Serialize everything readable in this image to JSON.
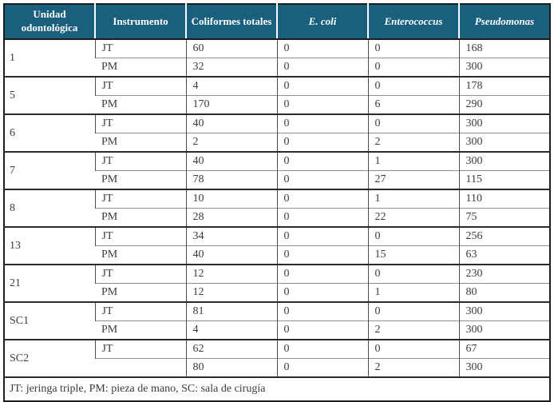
{
  "colors": {
    "header_bg": "#1A5F7E",
    "header_text": "#FFFFFF",
    "outer_border": "#1C1C1C",
    "group_border": "#2A2A2A",
    "inner_border": "#909090",
    "body_text": "#3B3B3B"
  },
  "table": {
    "columns": [
      {
        "label": "Unidad odontológica",
        "italic": false
      },
      {
        "label": "Instrumento",
        "italic": false
      },
      {
        "label": "Coliformes totales",
        "italic": false
      },
      {
        "label": "E. coli",
        "italic": true
      },
      {
        "label": "Enterococcus",
        "italic": true
      },
      {
        "label": "Pseudomonas",
        "italic": true
      }
    ],
    "groups": [
      {
        "unidad": "1",
        "rows": [
          [
            "JT",
            "60",
            "0",
            "0",
            "168"
          ],
          [
            "PM",
            "32",
            "0",
            "0",
            "300"
          ]
        ]
      },
      {
        "unidad": "5",
        "rows": [
          [
            "JT",
            "4",
            "0",
            "0",
            "178"
          ],
          [
            "PM",
            "170",
            "0",
            "6",
            "290"
          ]
        ]
      },
      {
        "unidad": "6",
        "rows": [
          [
            "JT",
            "40",
            "0",
            "0",
            "300"
          ],
          [
            "PM",
            "2",
            "0",
            "2",
            "300"
          ]
        ]
      },
      {
        "unidad": "7",
        "rows": [
          [
            "JT",
            "40",
            "0",
            "1",
            "300"
          ],
          [
            "PM",
            "78",
            "0",
            "27",
            "115"
          ]
        ]
      },
      {
        "unidad": "8",
        "rows": [
          [
            "JT",
            "10",
            "0",
            "1",
            "110"
          ],
          [
            "PM",
            "28",
            "0",
            "22",
            "75"
          ]
        ]
      },
      {
        "unidad": "13",
        "rows": [
          [
            "JT",
            "34",
            "0",
            "0",
            "256"
          ],
          [
            "PM",
            "40",
            "0",
            "15",
            "63"
          ]
        ]
      },
      {
        "unidad": "21",
        "rows": [
          [
            "JT",
            "12",
            "0",
            "0",
            "230"
          ],
          [
            "PM",
            "12",
            "0",
            "1",
            "80"
          ]
        ]
      },
      {
        "unidad": "SC1",
        "rows": [
          [
            "JT",
            "81",
            "0",
            "0",
            "300"
          ],
          [
            "PM",
            "4",
            "0",
            "2",
            "300"
          ]
        ]
      },
      {
        "unidad": "SC2",
        "rows": [
          [
            "JT",
            "62",
            "0",
            "0",
            "67"
          ],
          [
            "",
            "80",
            "0",
            "2",
            "300"
          ]
        ]
      }
    ],
    "footnote": "JT: jeringa triple, PM: pieza de mano, SC: sala de cirugía"
  }
}
